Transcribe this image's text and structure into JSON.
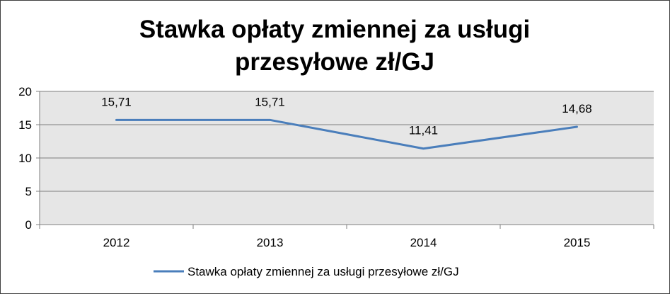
{
  "chart_data": {
    "type": "line",
    "title_lines": [
      "Stawka opłaty zmiennej za usługi",
      "przesyłowe zł/GJ"
    ],
    "categories": [
      "2012",
      "2013",
      "2014",
      "2015"
    ],
    "series": [
      {
        "name": "Stawka opłaty zmiennej za usługi przesyłowe zł/GJ",
        "values": [
          15.71,
          15.71,
          11.41,
          14.68
        ],
        "data_labels": [
          "15,71",
          "15,71",
          "11,41",
          "14,68"
        ],
        "color": "#4a7ebb"
      }
    ],
    "ylim": [
      0,
      20
    ],
    "yticks": [
      0,
      5,
      10,
      15,
      20
    ],
    "grid": true,
    "legend_position": "bottom",
    "plot_background": "#e6e6e6",
    "gridline_color": "#7f7f7f"
  }
}
